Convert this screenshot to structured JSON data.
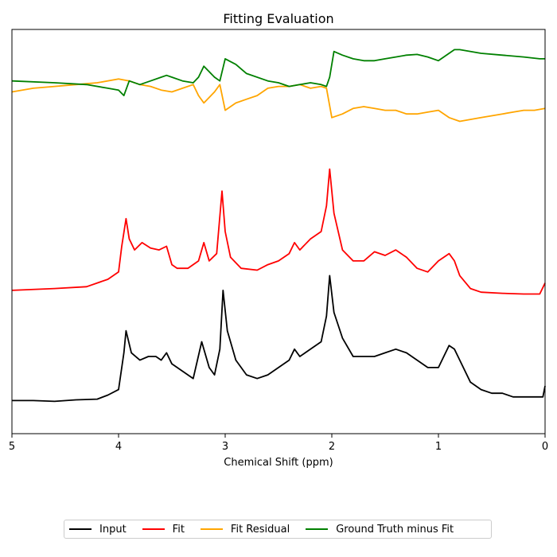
{
  "chart_data": {
    "type": "line",
    "title": "Fitting Evaluation",
    "xlabel": "Chemical Shift (ppm)",
    "ylabel": "",
    "xlim": [
      5,
      0
    ],
    "x_inverted": true,
    "ylim": [
      -1.0,
      10.0
    ],
    "xticks": [
      5,
      4,
      3,
      2,
      1,
      0
    ],
    "yticks": "none",
    "grid": false,
    "legend": {
      "placement": "bottom-center",
      "columns": 4
    },
    "series": [
      {
        "name": "Input",
        "color": "#000000",
        "points": [
          [
            5.0,
            -0.1
          ],
          [
            4.8,
            -0.1
          ],
          [
            4.6,
            -0.12
          ],
          [
            4.4,
            -0.08
          ],
          [
            4.2,
            -0.06
          ],
          [
            4.1,
            0.05
          ],
          [
            4.0,
            0.2
          ],
          [
            3.95,
            1.2
          ],
          [
            3.93,
            1.8
          ],
          [
            3.88,
            1.2
          ],
          [
            3.8,
            1.0
          ],
          [
            3.72,
            1.1
          ],
          [
            3.65,
            1.1
          ],
          [
            3.6,
            1.0
          ],
          [
            3.55,
            1.2
          ],
          [
            3.5,
            0.9
          ],
          [
            3.4,
            0.7
          ],
          [
            3.3,
            0.5
          ],
          [
            3.22,
            1.5
          ],
          [
            3.15,
            0.8
          ],
          [
            3.1,
            0.6
          ],
          [
            3.05,
            1.3
          ],
          [
            3.02,
            2.9
          ],
          [
            2.98,
            1.8
          ],
          [
            2.9,
            1.0
          ],
          [
            2.8,
            0.6
          ],
          [
            2.7,
            0.5
          ],
          [
            2.6,
            0.6
          ],
          [
            2.5,
            0.8
          ],
          [
            2.4,
            1.0
          ],
          [
            2.35,
            1.3
          ],
          [
            2.3,
            1.1
          ],
          [
            2.2,
            1.3
          ],
          [
            2.1,
            1.5
          ],
          [
            2.05,
            2.2
          ],
          [
            2.02,
            3.3
          ],
          [
            1.98,
            2.3
          ],
          [
            1.9,
            1.6
          ],
          [
            1.8,
            1.1
          ],
          [
            1.7,
            1.1
          ],
          [
            1.6,
            1.1
          ],
          [
            1.5,
            1.2
          ],
          [
            1.4,
            1.3
          ],
          [
            1.3,
            1.2
          ],
          [
            1.2,
            1.0
          ],
          [
            1.1,
            0.8
          ],
          [
            1.0,
            0.8
          ],
          [
            0.95,
            1.1
          ],
          [
            0.9,
            1.4
          ],
          [
            0.85,
            1.3
          ],
          [
            0.8,
            1.0
          ],
          [
            0.7,
            0.4
          ],
          [
            0.6,
            0.2
          ],
          [
            0.5,
            0.1
          ],
          [
            0.4,
            0.1
          ],
          [
            0.3,
            0.0
          ],
          [
            0.2,
            0.0
          ],
          [
            0.1,
            0.0
          ],
          [
            0.02,
            0.0
          ],
          [
            0.0,
            0.3
          ]
        ]
      },
      {
        "name": "Fit",
        "color": "#ff0000",
        "points": [
          [
            5.0,
            2.9
          ],
          [
            4.6,
            2.95
          ],
          [
            4.3,
            3.0
          ],
          [
            4.1,
            3.2
          ],
          [
            4.0,
            3.4
          ],
          [
            3.97,
            4.1
          ],
          [
            3.93,
            4.85
          ],
          [
            3.9,
            4.3
          ],
          [
            3.85,
            4.0
          ],
          [
            3.78,
            4.2
          ],
          [
            3.7,
            4.05
          ],
          [
            3.62,
            4.0
          ],
          [
            3.55,
            4.1
          ],
          [
            3.5,
            3.6
          ],
          [
            3.45,
            3.5
          ],
          [
            3.35,
            3.5
          ],
          [
            3.25,
            3.7
          ],
          [
            3.2,
            4.2
          ],
          [
            3.15,
            3.7
          ],
          [
            3.08,
            3.9
          ],
          [
            3.03,
            5.6
          ],
          [
            3.0,
            4.5
          ],
          [
            2.95,
            3.8
          ],
          [
            2.85,
            3.5
          ],
          [
            2.7,
            3.45
          ],
          [
            2.6,
            3.6
          ],
          [
            2.5,
            3.7
          ],
          [
            2.4,
            3.9
          ],
          [
            2.35,
            4.2
          ],
          [
            2.3,
            4.0
          ],
          [
            2.2,
            4.3
          ],
          [
            2.1,
            4.5
          ],
          [
            2.05,
            5.2
          ],
          [
            2.02,
            6.2
          ],
          [
            1.98,
            5.0
          ],
          [
            1.9,
            4.0
          ],
          [
            1.8,
            3.7
          ],
          [
            1.7,
            3.7
          ],
          [
            1.6,
            3.95
          ],
          [
            1.5,
            3.85
          ],
          [
            1.4,
            4.0
          ],
          [
            1.3,
            3.8
          ],
          [
            1.2,
            3.5
          ],
          [
            1.1,
            3.4
          ],
          [
            1.0,
            3.7
          ],
          [
            0.9,
            3.9
          ],
          [
            0.85,
            3.7
          ],
          [
            0.8,
            3.3
          ],
          [
            0.7,
            2.95
          ],
          [
            0.6,
            2.85
          ],
          [
            0.4,
            2.82
          ],
          [
            0.2,
            2.8
          ],
          [
            0.05,
            2.8
          ],
          [
            0.0,
            3.1
          ]
        ]
      },
      {
        "name": "Fit Residual",
        "color": "#ffa500",
        "points": [
          [
            5.0,
            8.3
          ],
          [
            4.8,
            8.4
          ],
          [
            4.6,
            8.45
          ],
          [
            4.4,
            8.5
          ],
          [
            4.2,
            8.55
          ],
          [
            4.0,
            8.65
          ],
          [
            3.9,
            8.6
          ],
          [
            3.8,
            8.5
          ],
          [
            3.7,
            8.45
          ],
          [
            3.6,
            8.35
          ],
          [
            3.5,
            8.3
          ],
          [
            3.4,
            8.4
          ],
          [
            3.3,
            8.5
          ],
          [
            3.25,
            8.2
          ],
          [
            3.2,
            8.0
          ],
          [
            3.1,
            8.3
          ],
          [
            3.05,
            8.5
          ],
          [
            3.0,
            7.8
          ],
          [
            2.9,
            8.0
          ],
          [
            2.8,
            8.1
          ],
          [
            2.7,
            8.2
          ],
          [
            2.6,
            8.4
          ],
          [
            2.5,
            8.45
          ],
          [
            2.4,
            8.45
          ],
          [
            2.3,
            8.5
          ],
          [
            2.2,
            8.4
          ],
          [
            2.1,
            8.45
          ],
          [
            2.05,
            8.4
          ],
          [
            2.0,
            7.6
          ],
          [
            1.9,
            7.7
          ],
          [
            1.8,
            7.85
          ],
          [
            1.7,
            7.9
          ],
          [
            1.6,
            7.85
          ],
          [
            1.5,
            7.8
          ],
          [
            1.4,
            7.8
          ],
          [
            1.3,
            7.7
          ],
          [
            1.2,
            7.7
          ],
          [
            1.1,
            7.75
          ],
          [
            1.0,
            7.8
          ],
          [
            0.9,
            7.6
          ],
          [
            0.8,
            7.5
          ],
          [
            0.7,
            7.55
          ],
          [
            0.6,
            7.6
          ],
          [
            0.5,
            7.65
          ],
          [
            0.4,
            7.7
          ],
          [
            0.3,
            7.75
          ],
          [
            0.2,
            7.8
          ],
          [
            0.1,
            7.8
          ],
          [
            0.0,
            7.85
          ]
        ]
      },
      {
        "name": "Ground Truth minus Fit",
        "color": "#008000",
        "points": [
          [
            5.0,
            8.6
          ],
          [
            4.6,
            8.55
          ],
          [
            4.3,
            8.5
          ],
          [
            4.1,
            8.4
          ],
          [
            4.0,
            8.35
          ],
          [
            3.95,
            8.2
          ],
          [
            3.9,
            8.6
          ],
          [
            3.8,
            8.5
          ],
          [
            3.7,
            8.6
          ],
          [
            3.6,
            8.7
          ],
          [
            3.55,
            8.75
          ],
          [
            3.5,
            8.7
          ],
          [
            3.4,
            8.6
          ],
          [
            3.3,
            8.55
          ],
          [
            3.25,
            8.7
          ],
          [
            3.2,
            9.0
          ],
          [
            3.1,
            8.7
          ],
          [
            3.05,
            8.6
          ],
          [
            3.0,
            9.2
          ],
          [
            2.9,
            9.05
          ],
          [
            2.8,
            8.8
          ],
          [
            2.6,
            8.6
          ],
          [
            2.5,
            8.55
          ],
          [
            2.4,
            8.45
          ],
          [
            2.3,
            8.5
          ],
          [
            2.2,
            8.55
          ],
          [
            2.1,
            8.5
          ],
          [
            2.05,
            8.45
          ],
          [
            2.02,
            8.7
          ],
          [
            1.98,
            9.4
          ],
          [
            1.9,
            9.3
          ],
          [
            1.8,
            9.2
          ],
          [
            1.7,
            9.15
          ],
          [
            1.6,
            9.15
          ],
          [
            1.5,
            9.2
          ],
          [
            1.4,
            9.25
          ],
          [
            1.3,
            9.3
          ],
          [
            1.2,
            9.32
          ],
          [
            1.1,
            9.25
          ],
          [
            1.0,
            9.15
          ],
          [
            0.9,
            9.35
          ],
          [
            0.85,
            9.45
          ],
          [
            0.8,
            9.45
          ],
          [
            0.6,
            9.35
          ],
          [
            0.4,
            9.3
          ],
          [
            0.2,
            9.25
          ],
          [
            0.05,
            9.2
          ],
          [
            0.0,
            9.2
          ]
        ]
      }
    ]
  }
}
